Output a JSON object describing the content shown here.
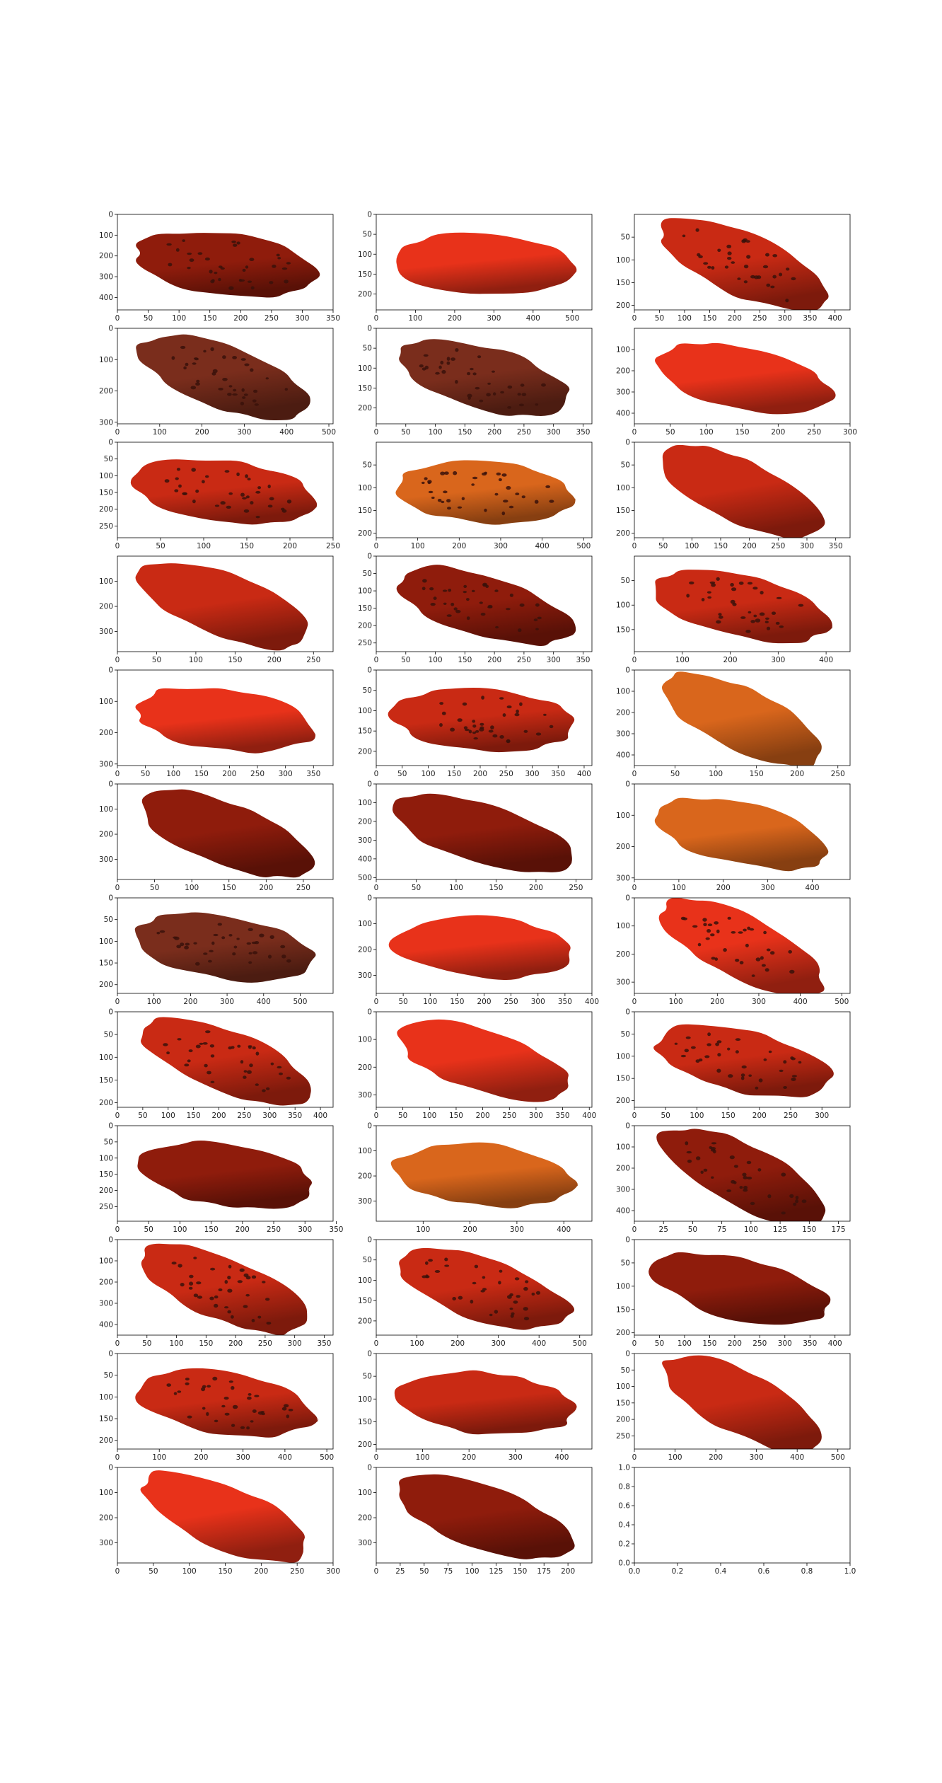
{
  "figure": {
    "rows": 12,
    "cols": 3
  },
  "colors": {
    "bright_red": "#e8321a",
    "red": "#c92a14",
    "dark_red": "#8f1c0c",
    "orange": "#d9661c",
    "brown": "#7a2d1c",
    "spot": "#3a120b",
    "axis": "#000000",
    "background": "#ffffff"
  },
  "chart_data": [
    {
      "type": "image",
      "xlim": [
        0,
        350
      ],
      "ylim": [
        460,
        0
      ],
      "xticks": [
        0,
        50,
        100,
        150,
        200,
        250,
        300,
        350
      ],
      "yticks": [
        0,
        100,
        200,
        300,
        400
      ],
      "color": "dark_red",
      "spots": true
    },
    {
      "type": "image",
      "xlim": [
        0,
        550
      ],
      "ylim": [
        240,
        0
      ],
      "xticks": [
        0,
        100,
        200,
        300,
        400,
        500
      ],
      "yticks": [
        0,
        50,
        100,
        150,
        200
      ],
      "color": "bright_red",
      "spots": false
    },
    {
      "type": "image",
      "xlim": [
        0,
        430
      ],
      "ylim": [
        210,
        0
      ],
      "xticks": [
        0,
        50,
        100,
        150,
        200,
        250,
        300,
        350,
        400
      ],
      "yticks": [
        50,
        100,
        150,
        200
      ],
      "color": "red",
      "spots": true
    },
    {
      "type": "image",
      "xlim": [
        0,
        510
      ],
      "ylim": [
        305,
        0
      ],
      "xticks": [
        0,
        100,
        200,
        300,
        400,
        500
      ],
      "yticks": [
        0,
        100,
        200,
        300
      ],
      "color": "brown",
      "spots": true
    },
    {
      "type": "image",
      "xlim": [
        0,
        365
      ],
      "ylim": [
        240,
        0
      ],
      "xticks": [
        0,
        50,
        100,
        150,
        200,
        250,
        300,
        350
      ],
      "yticks": [
        0,
        50,
        100,
        150,
        200
      ],
      "color": "brown",
      "spots": true
    },
    {
      "type": "image",
      "xlim": [
        0,
        300
      ],
      "ylim": [
        450,
        0
      ],
      "xticks": [
        0,
        50,
        100,
        150,
        200,
        250,
        300
      ],
      "yticks": [
        100,
        200,
        300,
        400
      ],
      "color": "bright_red",
      "spots": false
    },
    {
      "type": "image",
      "xlim": [
        0,
        250
      ],
      "ylim": [
        285,
        0
      ],
      "xticks": [
        0,
        50,
        100,
        150,
        200,
        250
      ],
      "yticks": [
        0,
        50,
        100,
        150,
        200,
        250
      ],
      "color": "red",
      "spots": true
    },
    {
      "type": "image",
      "xlim": [
        0,
        520
      ],
      "ylim": [
        210,
        0
      ],
      "xticks": [
        0,
        100,
        200,
        300,
        400,
        500
      ],
      "yticks": [
        50,
        100,
        150,
        200
      ],
      "color": "orange",
      "spots": true
    },
    {
      "type": "image",
      "xlim": [
        0,
        375
      ],
      "ylim": [
        210,
        0
      ],
      "xticks": [
        0,
        50,
        100,
        150,
        200,
        250,
        300,
        350
      ],
      "yticks": [
        0,
        50,
        100,
        150,
        200
      ],
      "color": "red",
      "spots": false
    },
    {
      "type": "image",
      "xlim": [
        0,
        275
      ],
      "ylim": [
        380,
        0
      ],
      "xticks": [
        0,
        50,
        100,
        150,
        200,
        250
      ],
      "yticks": [
        100,
        200,
        300
      ],
      "color": "red",
      "spots": false
    },
    {
      "type": "image",
      "xlim": [
        0,
        365
      ],
      "ylim": [
        275,
        0
      ],
      "xticks": [
        0,
        50,
        100,
        150,
        200,
        250,
        300,
        350
      ],
      "yticks": [
        0,
        50,
        100,
        150,
        200,
        250
      ],
      "color": "dark_red",
      "spots": true
    },
    {
      "type": "image",
      "xlim": [
        0,
        450
      ],
      "ylim": [
        195,
        0
      ],
      "xticks": [
        0,
        100,
        200,
        300,
        400
      ],
      "yticks": [
        50,
        100,
        150
      ],
      "color": "red",
      "spots": true
    },
    {
      "type": "image",
      "xlim": [
        0,
        385
      ],
      "ylim": [
        305,
        0
      ],
      "xticks": [
        0,
        50,
        100,
        150,
        200,
        250,
        300,
        350
      ],
      "yticks": [
        0,
        100,
        200,
        300
      ],
      "color": "bright_red",
      "spots": false
    },
    {
      "type": "image",
      "xlim": [
        0,
        415
      ],
      "ylim": [
        235,
        0
      ],
      "xticks": [
        0,
        50,
        100,
        150,
        200,
        250,
        300,
        350,
        400
      ],
      "yticks": [
        0,
        50,
        100,
        150,
        200
      ],
      "color": "red",
      "spots": true
    },
    {
      "type": "image",
      "xlim": [
        0,
        265
      ],
      "ylim": [
        450,
        0
      ],
      "xticks": [
        0,
        50,
        100,
        150,
        200,
        250
      ],
      "yticks": [
        0,
        100,
        200,
        300,
        400
      ],
      "color": "orange",
      "spots": false
    },
    {
      "type": "image",
      "xlim": [
        0,
        290
      ],
      "ylim": [
        380,
        0
      ],
      "xticks": [
        0,
        50,
        100,
        150,
        200,
        250
      ],
      "yticks": [
        0,
        100,
        200,
        300
      ],
      "color": "dark_red",
      "spots": false
    },
    {
      "type": "image",
      "xlim": [
        0,
        270
      ],
      "ylim": [
        510,
        0
      ],
      "xticks": [
        0,
        50,
        100,
        150,
        200,
        250
      ],
      "yticks": [
        0,
        100,
        200,
        300,
        400,
        500
      ],
      "color": "dark_red",
      "spots": false
    },
    {
      "type": "image",
      "xlim": [
        0,
        485
      ],
      "ylim": [
        305,
        0
      ],
      "xticks": [
        0,
        100,
        200,
        300,
        400
      ],
      "yticks": [
        0,
        100,
        200,
        300
      ],
      "color": "orange",
      "spots": false
    },
    {
      "type": "image",
      "xlim": [
        0,
        590
      ],
      "ylim": [
        220,
        0
      ],
      "xticks": [
        0,
        100,
        200,
        300,
        400,
        500
      ],
      "yticks": [
        0,
        50,
        100,
        150,
        200
      ],
      "color": "brown",
      "spots": true
    },
    {
      "type": "image",
      "xlim": [
        0,
        400
      ],
      "ylim": [
        370,
        0
      ],
      "xticks": [
        0,
        50,
        100,
        150,
        200,
        250,
        300,
        350,
        400
      ],
      "yticks": [
        0,
        100,
        200,
        300
      ],
      "color": "bright_red",
      "spots": false
    },
    {
      "type": "image",
      "xlim": [
        0,
        520
      ],
      "ylim": [
        340,
        0
      ],
      "xticks": [
        0,
        100,
        200,
        300,
        400,
        500
      ],
      "yticks": [
        0,
        100,
        200,
        300
      ],
      "color": "bright_red",
      "spots": true
    },
    {
      "type": "image",
      "xlim": [
        0,
        425
      ],
      "ylim": [
        210,
        0
      ],
      "xticks": [
        0,
        50,
        100,
        150,
        200,
        250,
        300,
        350,
        400
      ],
      "yticks": [
        0,
        50,
        100,
        150,
        200
      ],
      "color": "red",
      "spots": true
    },
    {
      "type": "image",
      "xlim": [
        0,
        405
      ],
      "ylim": [
        345,
        0
      ],
      "xticks": [
        0,
        50,
        100,
        150,
        200,
        250,
        300,
        350,
        400
      ],
      "yticks": [
        0,
        100,
        200,
        300
      ],
      "color": "bright_red",
      "spots": false
    },
    {
      "type": "image",
      "xlim": [
        0,
        345
      ],
      "ylim": [
        215,
        0
      ],
      "xticks": [
        0,
        50,
        100,
        150,
        200,
        250,
        300
      ],
      "yticks": [
        0,
        50,
        100,
        150,
        200
      ],
      "color": "red",
      "spots": true
    },
    {
      "type": "image",
      "xlim": [
        0,
        345
      ],
      "ylim": [
        295,
        0
      ],
      "xticks": [
        0,
        50,
        100,
        150,
        200,
        250,
        300,
        350
      ],
      "yticks": [
        0,
        50,
        100,
        150,
        200,
        250
      ],
      "color": "dark_red",
      "spots": false
    },
    {
      "type": "image",
      "xlim": [
        0,
        460
      ],
      "ylim": [
        380,
        0
      ],
      "xticks": [
        100,
        200,
        300,
        400
      ],
      "yticks": [
        0,
        100,
        200,
        300
      ],
      "color": "orange",
      "spots": false
    },
    {
      "type": "image",
      "xlim": [
        0,
        185
      ],
      "ylim": [
        450,
        0
      ],
      "xticks": [
        0,
        25,
        50,
        75,
        100,
        125,
        150,
        175
      ],
      "yticks": [
        0,
        100,
        200,
        300,
        400
      ],
      "color": "dark_red",
      "spots": true
    },
    {
      "type": "image",
      "xlim": [
        0,
        365
      ],
      "ylim": [
        450,
        0
      ],
      "xticks": [
        0,
        50,
        100,
        150,
        200,
        250,
        300,
        350
      ],
      "yticks": [
        0,
        100,
        200,
        300,
        400
      ],
      "color": "red",
      "spots": true
    },
    {
      "type": "image",
      "xlim": [
        0,
        530
      ],
      "ylim": [
        235,
        0
      ],
      "xticks": [
        0,
        100,
        200,
        300,
        400,
        500
      ],
      "yticks": [
        0,
        50,
        100,
        150,
        200
      ],
      "color": "red",
      "spots": true
    },
    {
      "type": "image",
      "xlim": [
        0,
        430
      ],
      "ylim": [
        205,
        0
      ],
      "xticks": [
        0,
        50,
        100,
        150,
        200,
        250,
        300,
        350,
        400
      ],
      "yticks": [
        0,
        50,
        100,
        150,
        200
      ],
      "color": "dark_red",
      "spots": false
    },
    {
      "type": "image",
      "xlim": [
        0,
        515
      ],
      "ylim": [
        220,
        0
      ],
      "xticks": [
        0,
        100,
        200,
        300,
        400,
        500
      ],
      "yticks": [
        0,
        50,
        100,
        150,
        200
      ],
      "color": "red",
      "spots": true
    },
    {
      "type": "image",
      "xlim": [
        0,
        465
      ],
      "ylim": [
        210,
        0
      ],
      "xticks": [
        0,
        100,
        200,
        300,
        400
      ],
      "yticks": [
        0,
        50,
        100,
        150,
        200
      ],
      "color": "red",
      "spots": false
    },
    {
      "type": "image",
      "xlim": [
        0,
        530
      ],
      "ylim": [
        290,
        0
      ],
      "xticks": [
        0,
        100,
        200,
        300,
        400,
        500
      ],
      "yticks": [
        0,
        50,
        100,
        150,
        200,
        250
      ],
      "color": "red",
      "spots": false
    },
    {
      "type": "image",
      "xlim": [
        0,
        300
      ],
      "ylim": [
        380,
        0
      ],
      "xticks": [
        0,
        50,
        100,
        150,
        200,
        250,
        300
      ],
      "yticks": [
        0,
        100,
        200,
        300
      ],
      "color": "bright_red",
      "spots": false
    },
    {
      "type": "image",
      "xlim": [
        0,
        225
      ],
      "ylim": [
        380,
        0
      ],
      "xticks": [
        0,
        25,
        50,
        75,
        100,
        125,
        150,
        175,
        200
      ],
      "yticks": [
        0,
        100,
        200,
        300
      ],
      "color": "dark_red",
      "spots": false
    },
    {
      "type": "empty",
      "xlim": [
        0,
        1
      ],
      "ylim": [
        0,
        1
      ],
      "xticks": [
        "0.0",
        "0.2",
        "0.4",
        "0.6",
        "0.8",
        "1.0"
      ],
      "yticks": [
        "0.0",
        "0.2",
        "0.4",
        "0.6",
        "0.8",
        "1.0"
      ]
    }
  ]
}
